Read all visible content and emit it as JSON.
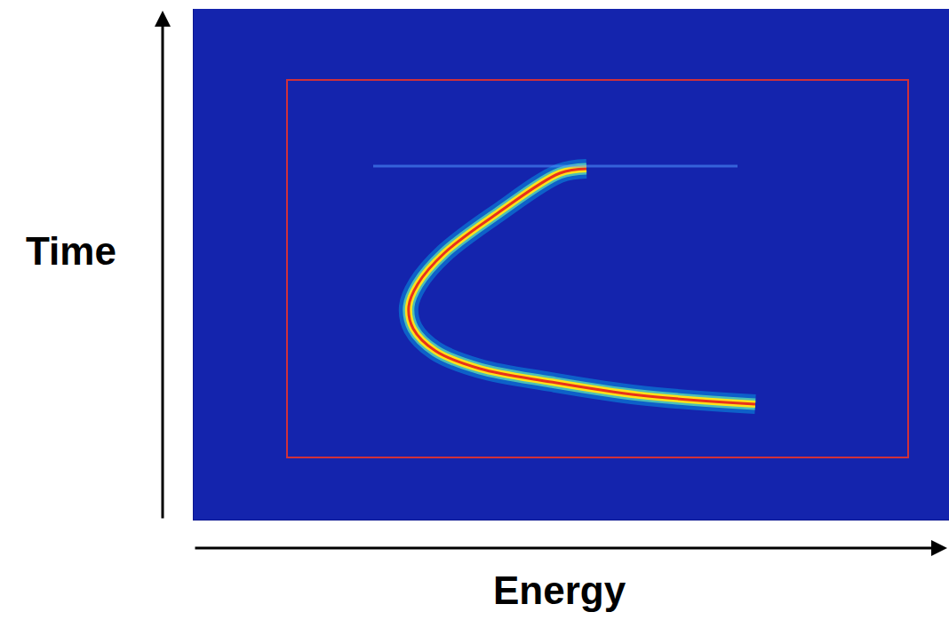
{
  "chart_data": {
    "type": "line",
    "x_label": "Energy",
    "y_label": "Time",
    "x": [
      442,
      412,
      342,
      282,
      252,
      242,
      247,
      272,
      322,
      402,
      502,
      632
    ],
    "values": [
      395,
      390,
      345,
      300,
      265,
      240,
      215,
      190,
      170,
      155,
      140,
      130
    ],
    "xlim": [
      0,
      850
    ],
    "ylim": [
      0,
      575
    ],
    "tick_labels": false,
    "grid": false,
    "color": "#e8321a"
  }
}
